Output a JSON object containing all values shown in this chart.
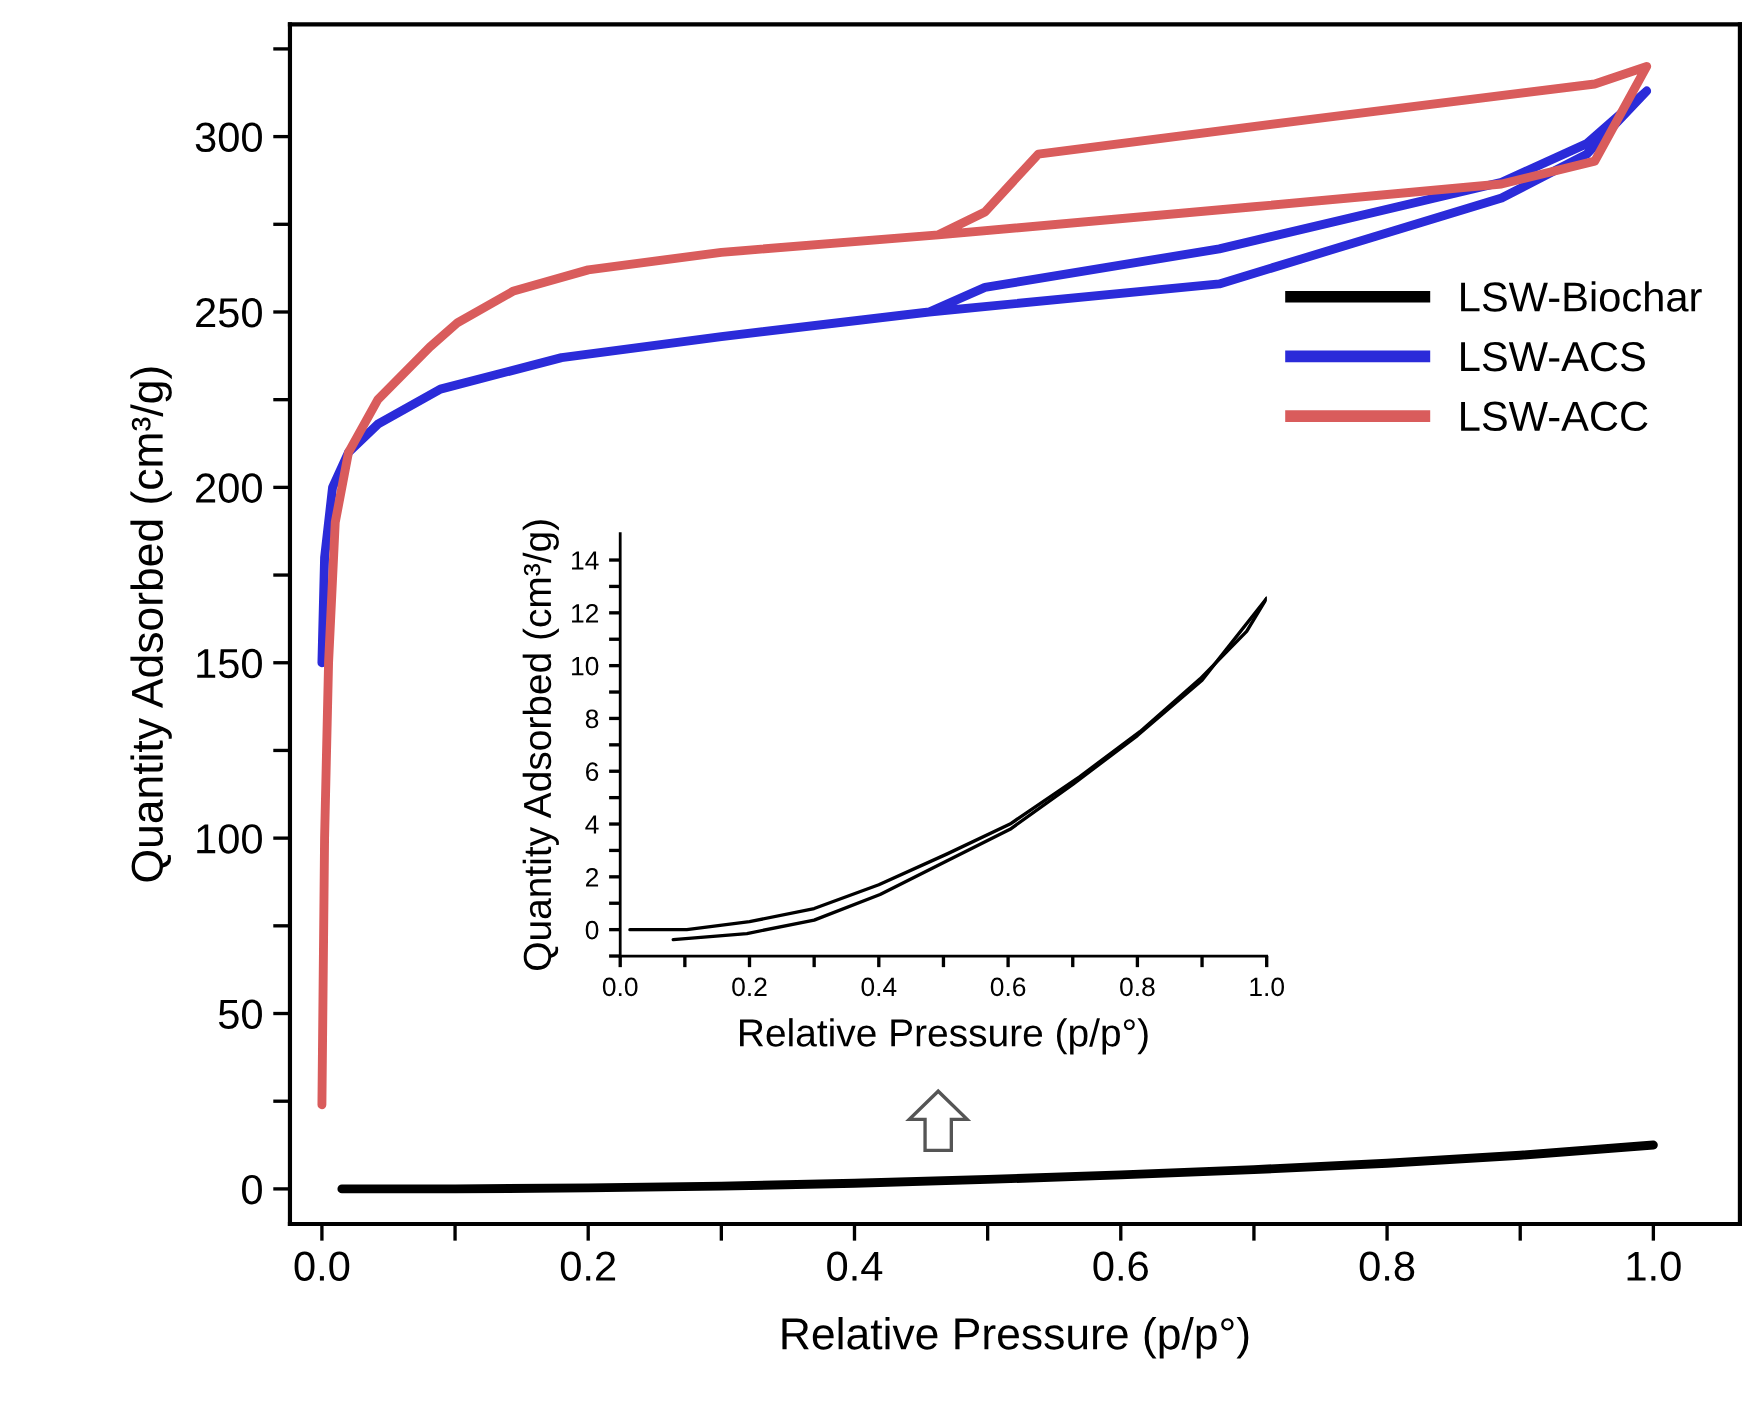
{
  "chart_data": [
    {
      "type": "line",
      "xlabel": "Relative Pressure (p/p°)",
      "ylabel": "Quantity Adsorbed (cm³/g)",
      "xlim": [
        -0.024,
        1.065
      ],
      "ylim": [
        -10,
        332
      ],
      "xticks": [
        {
          "value": 0,
          "label": "0.0"
        },
        {
          "value": 0.1,
          "label": null
        },
        {
          "value": 0.2,
          "label": "0.2"
        },
        {
          "value": 0.3,
          "label": null
        },
        {
          "value": 0.4,
          "label": "0.4"
        },
        {
          "value": 0.5,
          "label": null
        },
        {
          "value": 0.6,
          "label": "0.6"
        },
        {
          "value": 0.7,
          "label": null
        },
        {
          "value": 0.8,
          "label": "0.8"
        },
        {
          "value": 0.9,
          "label": null
        },
        {
          "value": 1.0,
          "label": "1.0"
        }
      ],
      "yticks": [
        0,
        {
          "value": 25,
          "label": null
        },
        50,
        {
          "value": 75,
          "label": null
        },
        100,
        {
          "value": 125,
          "label": null
        },
        150,
        {
          "value": 175,
          "label": null
        },
        200,
        {
          "value": 225,
          "label": null
        },
        250,
        {
          "value": 275,
          "label": null
        },
        300,
        {
          "value": 325,
          "label": null
        }
      ],
      "legend": "right",
      "grid": false,
      "series": [
        {
          "name": "LSW-Biochar",
          "color": "#000000",
          "x": [
            0.015,
            0.1,
            0.2,
            0.3,
            0.4,
            0.5,
            0.6,
            0.7,
            0.8,
            0.9,
            1.0
          ],
          "values": [
            0,
            0,
            0.3,
            0.8,
            1.6,
            2.7,
            4,
            5.5,
            7.3,
            9.6,
            12.5
          ]
        },
        {
          "name": "LSW-ACS",
          "color": "#2b2bd9",
          "x": [
            0,
            0.002,
            0.008,
            0.02,
            0.042,
            0.089,
            0.18,
            0.3,
            0.456,
            0.674,
            0.886,
            0.95,
            0.995,
            0.95,
            0.886,
            0.674,
            0.498,
            0.456
          ],
          "values": [
            150,
            180,
            200,
            210,
            218,
            228,
            237,
            243,
            250,
            258,
            282.5,
            295,
            313,
            298,
            287,
            268,
            257,
            250
          ]
        },
        {
          "name": "LSW-ACC",
          "color": "#d95c5c",
          "x": [
            0,
            0.002,
            0.005,
            0.01,
            0.02,
            0.042,
            0.081,
            0.102,
            0.144,
            0.2,
            0.3,
            0.463,
            0.7,
            0.886,
            0.956,
            0.995,
            0.956,
            0.744,
            0.538,
            0.498,
            0.463
          ],
          "values": [
            24,
            100,
            150,
            190,
            210,
            225,
            240,
            247,
            256,
            262,
            267,
            272,
            280,
            286.5,
            293,
            320,
            315,
            305,
            295,
            278.5,
            272
          ]
        }
      ]
    },
    {
      "type": "line",
      "xlabel": "Relative Pressure (p/p°)",
      "ylabel": "Quantity Adsorbed (cm³/g)",
      "xlim": [
        0,
        1.0
      ],
      "ylim": [
        -1,
        15
      ],
      "xticks": [
        {
          "value": 0,
          "label": "0.0"
        },
        {
          "value": 0.1,
          "label": null
        },
        {
          "value": 0.2,
          "label": "0.2"
        },
        {
          "value": 0.3,
          "label": null
        },
        {
          "value": 0.4,
          "label": "0.4"
        },
        {
          "value": 0.5,
          "label": null
        },
        {
          "value": 0.6,
          "label": "0.6"
        },
        {
          "value": 0.7,
          "label": null
        },
        {
          "value": 0.8,
          "label": "0.8"
        },
        {
          "value": 0.9,
          "label": null
        },
        {
          "value": 1.0,
          "label": "1.0"
        }
      ],
      "yticks": [
        {
          "value": -1,
          "label": null
        },
        0,
        {
          "value": 1,
          "label": null
        },
        2,
        {
          "value": 3,
          "label": null
        },
        4,
        {
          "value": 5,
          "label": null
        },
        6,
        {
          "value": 7,
          "label": null
        },
        8,
        {
          "value": 9,
          "label": null
        },
        10,
        {
          "value": 11,
          "label": null
        },
        12,
        {
          "value": 13,
          "label": null
        },
        14
      ],
      "legend": false,
      "grid": false,
      "series": [
        {
          "color": "#000000",
          "x": [
            0.015,
            0.103,
            0.2,
            0.3,
            0.4,
            0.505,
            0.603,
            0.711,
            0.804,
            0.897,
            0.969,
            1.0
          ],
          "values": [
            0,
            0,
            0.3,
            0.8,
            1.7,
            2.86,
            4.0,
            5.8,
            7.5,
            9.5,
            11.3,
            12.55
          ]
        },
        {
          "color": "#000000",
          "x": [
            0.082,
            0.196,
            0.3,
            0.402,
            0.505,
            0.603,
            0.7,
            0.8,
            0.9,
            1.0
          ],
          "values": [
            -0.38,
            -0.15,
            0.36,
            1.33,
            2.6,
            3.8,
            5.5,
            7.35,
            9.45,
            12.55
          ]
        }
      ]
    }
  ]
}
